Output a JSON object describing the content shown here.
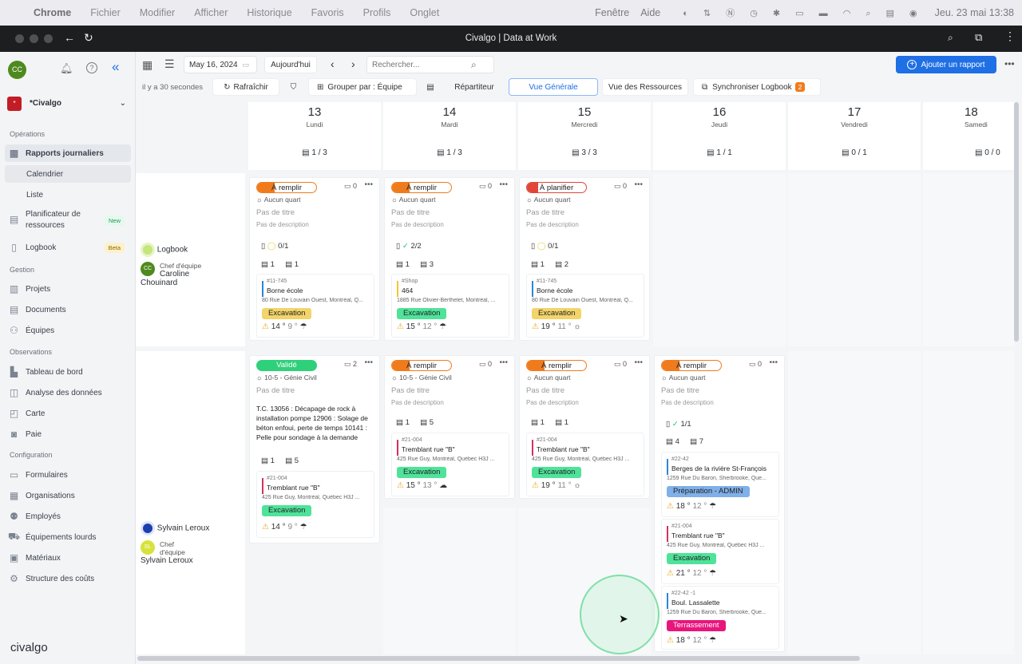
{
  "menubar": {
    "apple": "",
    "app": "Chrome",
    "items": [
      "Fichier",
      "Modifier",
      "Afficher",
      "Historique",
      "Favoris",
      "Profils",
      "Onglet"
    ],
    "right": [
      "Fenêtre",
      "Aide"
    ],
    "clock": "Jeu. 23 mai 13:38"
  },
  "window": {
    "title": "Civalgo | Data at Work"
  },
  "sidebar": {
    "avatar": "CC",
    "org": "*Civalgo",
    "sections": [
      {
        "label": "Opérations",
        "items": [
          {
            "label": "Rapports journaliers",
            "icon": "calendar-icon"
          },
          {
            "label": "Calendrier",
            "sub": true
          },
          {
            "label": "Liste",
            "sub": true
          },
          {
            "label": "Planificateur de ressources",
            "icon": "planner-icon",
            "badge": "New"
          },
          {
            "label": "Logbook",
            "icon": "logbook-icon",
            "badge": "Beta"
          }
        ]
      },
      {
        "label": "Gestion",
        "items": [
          {
            "label": "Projets",
            "icon": "projects-icon"
          },
          {
            "label": "Documents",
            "icon": "documents-icon"
          },
          {
            "label": "Équipes",
            "icon": "teams-icon"
          }
        ]
      },
      {
        "label": "Observations",
        "items": [
          {
            "label": "Tableau de bord",
            "icon": "dashboard-icon"
          },
          {
            "label": "Analyse des données",
            "icon": "analytics-icon"
          },
          {
            "label": "Carte",
            "icon": "map-icon"
          },
          {
            "label": "Paie",
            "icon": "pay-icon"
          }
        ]
      },
      {
        "label": "Configuration",
        "items": [
          {
            "label": "Formulaires",
            "icon": "forms-icon"
          },
          {
            "label": "Organisations",
            "icon": "org-icon"
          },
          {
            "label": "Employés",
            "icon": "employees-icon"
          },
          {
            "label": "Équipements lourds",
            "icon": "equipment-icon"
          },
          {
            "label": "Matériaux",
            "icon": "materials-icon"
          },
          {
            "label": "Structure des coûts",
            "icon": "cost-icon"
          }
        ]
      }
    ],
    "logo": "civalgo"
  },
  "toolbar": {
    "date": "May 16, 2024",
    "today": "Aujourd'hui",
    "search_placeholder": "Rechercher...",
    "add": "Ajouter un rapport",
    "updated": "il y a 30 secondes",
    "refresh": "Rafraîchir",
    "group_prefix": "Grouper par : ",
    "group_value": "Équipe",
    "dispatch": "Répartiteur",
    "general_view": "Vue Générale",
    "resources_view": "Vue des Ressources",
    "sync": "Synchroniser Logbook",
    "sync_count": "2"
  },
  "days": [
    {
      "num": "13",
      "name": "Lundi",
      "count": "1 / 3"
    },
    {
      "num": "14",
      "name": "Mardi",
      "count": "1 / 3"
    },
    {
      "num": "15",
      "name": "Mercredi",
      "count": "3 / 3"
    },
    {
      "num": "16",
      "name": "Jeudi",
      "count": "1 / 1"
    },
    {
      "num": "17",
      "name": "Vendredi",
      "count": "0 / 1"
    },
    {
      "num": "18",
      "name": "Samedi",
      "count": "0 / 0"
    }
  ],
  "teams": [
    {
      "name": "Logbook",
      "role": "Chef d'équipe",
      "lead": "Caroline Chouinard",
      "avatar": "CC"
    },
    {
      "name": "Sylvain Leroux",
      "role": "Chef d'équipe",
      "lead": "Sylvain Leroux",
      "avatar": "SL"
    }
  ],
  "common": {
    "no_title": "Pas de titre",
    "no_desc": "Pas de description"
  },
  "cards": {
    "r1c1": {
      "status": "À remplir",
      "comments": "0",
      "shift": "Aucun quart",
      "check": "0/1",
      "c1": "1",
      "c2": "1",
      "code": "#11-745",
      "name": "Borne école",
      "addr": "80 Rue De Louvain Ouest, Montréal, Q...",
      "tag": "Excavation",
      "temp": "14 °",
      "low": "9 °"
    },
    "r1c2": {
      "status": "À remplir",
      "comments": "0",
      "shift": "Aucun quart",
      "check": "2/2",
      "c1": "1",
      "c2": "3",
      "code": "#Shop",
      "name": "464",
      "addr": "1885 Rue Olivier-Berthelet, Montréal, ...",
      "tag": "Excavation",
      "temp": "15 °",
      "low": "12 °"
    },
    "r1c3": {
      "status": "À planifier",
      "comments": "0",
      "shift": "Aucun quart",
      "check": "0/1",
      "c1": "1",
      "c2": "2",
      "code": "#11-745",
      "name": "Borne école",
      "addr": "80 Rue De Louvain Ouest, Montréal, Q...",
      "tag": "Excavation",
      "temp": "19 °",
      "low": "11 °"
    },
    "r2c1": {
      "status": "Validé",
      "comments": "2",
      "shift": "10-5 - Génie Civil",
      "body": "T.C. 13056 : Décapage de rock à installation pompe 12906 : Solage de béton enfoui, perte de temps 10141 : Pelle pour sondage à la demande",
      "c1": "1",
      "c2": "5",
      "code": "#21-004",
      "name": "Tremblant rue \"B\"",
      "addr": "425 Rue Guy, Montréal, Québec H3J ...",
      "tag": "Excavation",
      "temp": "14 °",
      "low": "9 °"
    },
    "r2c2": {
      "status": "À remplir",
      "comments": "0",
      "shift": "10-5 - Génie Civil",
      "c1": "1",
      "c2": "5",
      "code": "#21-004",
      "name": "Tremblant rue \"B\"",
      "addr": "425 Rue Guy, Montréal, Québec H3J ...",
      "tag": "Excavation",
      "temp": "15 °",
      "low": "13 °"
    },
    "r2c3": {
      "status": "À remplir",
      "comments": "0",
      "shift": "Aucun quart",
      "c1": "1",
      "c2": "1",
      "code": "#21-004",
      "name": "Tremblant rue \"B\"",
      "addr": "425 Rue Guy, Montréal, Québec H3J ...",
      "tag": "Excavation",
      "temp": "19 °",
      "low": "11 °"
    },
    "r2c4": {
      "status": "À remplir",
      "comments": "0",
      "shift": "Aucun quart",
      "check": "1/1",
      "c1": "4",
      "c2": "7",
      "p1": {
        "code": "#22-42",
        "name": "Berges de la rivière St-François",
        "addr": "1259 Rue Du Baron, Sherbrooke, Que...",
        "tag": "Préparation - ADMIN",
        "temp": "18 °",
        "low": "12 °"
      },
      "p2": {
        "code": "#21-004",
        "name": "Tremblant rue \"B\"",
        "addr": "425 Rue Guy, Montréal, Québec H3J ...",
        "tag": "Excavation",
        "temp": "21 °",
        "low": "12 °"
      },
      "p3": {
        "code": "#22-42 -1",
        "name": "Boul. Lassalette",
        "addr": "1259 Rue Du Baron, Sherbrooke, Que...",
        "tag": "Terrassement",
        "temp": "18 °",
        "low": "12 °"
      }
    }
  },
  "colors": {
    "accent": "#1f6fe5",
    "fill": "#f07b1d",
    "plan": "#e0463a",
    "validated": "#2fd07a",
    "excavation_yellow": "#f2d46a",
    "excavation_green": "#4fe39a",
    "admin": "#7fb0e8",
    "terrassement": "#e8157d"
  }
}
